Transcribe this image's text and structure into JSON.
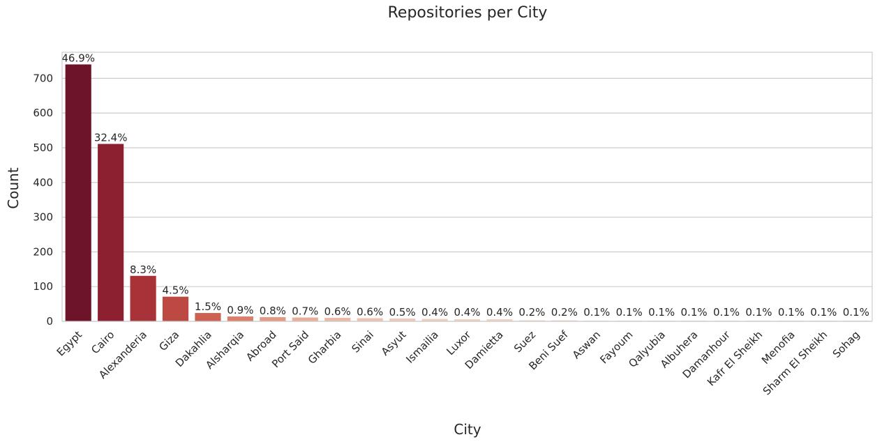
{
  "chart_data": {
    "type": "bar",
    "title": "Repositories per City",
    "xlabel": "City",
    "ylabel": "Count",
    "ylim": [
      0,
      775
    ],
    "yticks": [
      0,
      100,
      200,
      300,
      400,
      500,
      600,
      700
    ],
    "grid": "horizontal",
    "categories": [
      "Egypt",
      "Cairo",
      "Alexanderia",
      "Giza",
      "Dakahlia",
      "Alsharqia",
      "Abroad",
      "Port Said",
      "Gharbia",
      "Sinai",
      "Asyut",
      "Ismailia",
      "Luxor",
      "Damietta",
      "Suez",
      "Beni Suef",
      "Aswan",
      "Fayoum",
      "Qalyubia",
      "Albuhera",
      "Damanhour",
      "Kafr El Sheikh",
      "Menofia",
      "Sharm El Sheikh",
      "Sohag"
    ],
    "values": [
      740,
      511,
      131,
      71,
      24,
      14,
      12,
      11,
      10,
      9,
      8,
      7,
      6,
      6,
      3,
      3,
      2,
      2,
      2,
      2,
      2,
      2,
      2,
      2,
      2
    ],
    "labels": [
      "46.9%",
      "32.4%",
      "8.3%",
      "4.5%",
      "1.5%",
      "0.9%",
      "0.8%",
      "0.7%",
      "0.6%",
      "0.6%",
      "0.5%",
      "0.4%",
      "0.4%",
      "0.4%",
      "0.2%",
      "0.2%",
      "0.1%",
      "0.1%",
      "0.1%",
      "0.1%",
      "0.1%",
      "0.1%",
      "0.1%",
      "0.1%",
      "0.1%"
    ],
    "colors": [
      "#6d1428",
      "#8c1f30",
      "#a73238",
      "#bd4a42",
      "#cc6152",
      "#d97f6c",
      "#e29a85",
      "#e9ae9a",
      "#ecb9a6",
      "#efc2b0",
      "#f1c8b7",
      "#f2ccbc",
      "#f3cfc0",
      "#f3d0c2",
      "#f4d3c5",
      "#f4d4c6",
      "#f5d6c8",
      "#f5d6c9",
      "#f5d7ca",
      "#f5d7ca",
      "#f5d8cb",
      "#f5d8cb",
      "#f5d8cc",
      "#f5d8cc",
      "#f5d8cc"
    ]
  }
}
